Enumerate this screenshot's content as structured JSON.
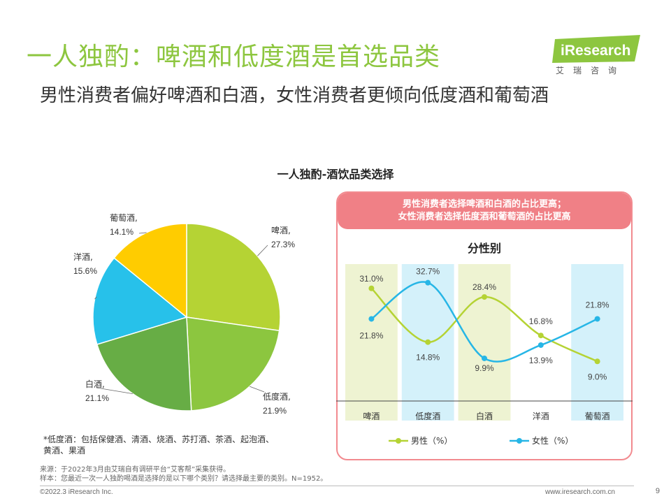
{
  "header": {
    "title": "一人独酌：啤酒和低度酒是首选品类",
    "subtitle": "男性消费者偏好啤酒和白酒，女性消费者更倾向低度酒和葡萄酒"
  },
  "logo": {
    "brand": "iResearch",
    "cn": "艾瑞咨询"
  },
  "colors": {
    "accent": "#8dc63f",
    "banner": "#f08086",
    "male": "#b5d334",
    "female": "#27b6e6",
    "male_band": "#eef3d2",
    "female_band": "#d4f1fa"
  },
  "chart_data": [
    {
      "type": "pie",
      "title": "一人独酌-酒饮品类选择",
      "slices": [
        {
          "label": "啤酒,",
          "value": 27.3,
          "value_text": "27.3%",
          "color": "#b5d334"
        },
        {
          "label": "低度酒,",
          "value": 21.9,
          "value_text": "21.9%",
          "color": "#8cc63f"
        },
        {
          "label": "白酒,",
          "value": 21.1,
          "value_text": "21.1%",
          "color": "#67ad45"
        },
        {
          "label": "洋酒,",
          "value": 15.6,
          "value_text": "15.6%",
          "color": "#27c1ea"
        },
        {
          "label": "葡萄酒,",
          "value": 14.1,
          "value_text": "14.1%",
          "color": "#ffcc00"
        }
      ]
    },
    {
      "type": "line",
      "title": "分性别",
      "categories": [
        "啤酒",
        "低度酒",
        "白酒",
        "洋酒",
        "葡萄酒"
      ],
      "ylim": [
        0,
        40
      ],
      "series": [
        {
          "name": "男性（%）",
          "color": "#b5d334",
          "values": [
            31.0,
            14.8,
            28.4,
            16.8,
            9.0
          ],
          "labels": [
            "31.0%",
            "14.8%",
            "28.4%",
            "16.8%",
            "9.0%"
          ]
        },
        {
          "name": "女性（%）",
          "color": "#27b6e6",
          "values": [
            21.8,
            32.7,
            9.9,
            13.9,
            21.8
          ],
          "labels": [
            "21.8%",
            "32.7%",
            "9.9%",
            "13.9%",
            "21.8%"
          ]
        }
      ],
      "highlight": {
        "male_bands": [
          "啤酒",
          "白酒"
        ],
        "female_bands": [
          "低度酒",
          "葡萄酒"
        ]
      }
    }
  ],
  "banner": {
    "line1": "男性消费者选择啤酒和白酒的占比更高；",
    "line2": "女性消费者选择低度酒和葡萄酒的占比更高"
  },
  "footnote": "*低度酒：包括保健酒、清酒、烧酒、苏打酒、茶酒、起泡酒、黄酒、果酒",
  "source": {
    "line1": "来源：于2022年3月由艾瑞自有调研平台“艾客帮”采集获得。",
    "line2": "样本：您最近一次一人独酌喝酒是选择的是以下哪个类别？请选择最主要的类别。N=1952。"
  },
  "footer": {
    "copyright": "©2022.3 iResearch Inc.",
    "website": "www.iresearch.com.cn",
    "page": "9"
  }
}
